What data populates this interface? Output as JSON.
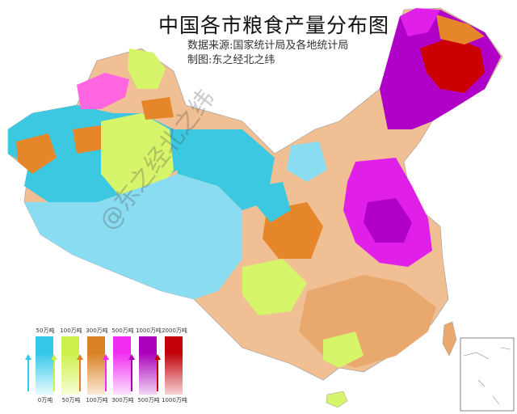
{
  "title": "中国各市粮食产量分布图",
  "source": "数据来源:国家统计局及各地统计局",
  "author": "制图:东之经北之纬",
  "watermark": "@东之经北之纬",
  "colors": {
    "cyan": "#3cc8e0",
    "light_cyan": "#8adcf0",
    "yellow_green": "#d7f56a",
    "tan": "#e8a86e",
    "orange": "#e6862a",
    "peach": "#f0bf94",
    "pink": "#ff66e0",
    "magenta": "#e020e8",
    "purple": "#b000c8",
    "dark_red": "#cc0000"
  },
  "legend": [
    {
      "top": "50万吨",
      "bottom": "0万吨",
      "color_top": "#33c7e8",
      "color_bottom": "#e8fbff"
    },
    {
      "top": "100万吨",
      "bottom": "50万吨",
      "color_top": "#ccf04a",
      "color_bottom": "#f7ffd6"
    },
    {
      "top": "300万吨",
      "bottom": "100万吨",
      "color_top": "#d98226",
      "color_bottom": "#fbe9d5"
    },
    {
      "top": "500万吨",
      "bottom": "300万吨",
      "color_top": "#f02cf0",
      "color_bottom": "#fde2fd"
    },
    {
      "top": "1000万吨",
      "bottom": "500万吨",
      "color_top": "#aa00bb",
      "color_bottom": "#f2d5f6"
    },
    {
      "top": "2000万吨",
      "bottom": "1000万吨",
      "color_top": "#c20008",
      "color_bottom": "#f6d3d5"
    }
  ]
}
